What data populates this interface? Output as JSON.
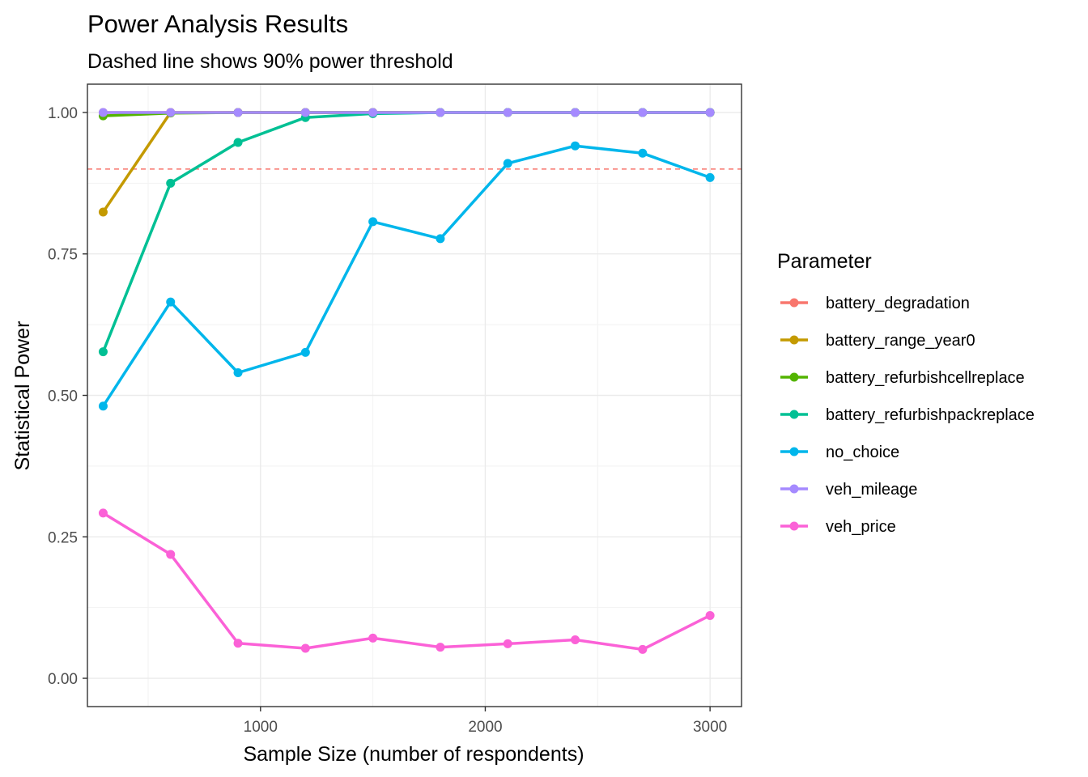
{
  "chart_data": {
    "type": "line",
    "title": "Power Analysis Results",
    "subtitle": "Dashed line shows 90% power threshold",
    "xlabel": "Sample Size (number of respondents)",
    "ylabel": "Statistical Power",
    "xlim": [
      230,
      3140
    ],
    "ylim": [
      -0.05,
      1.05
    ],
    "x_ticks": [
      1000,
      2000,
      3000
    ],
    "x_tick_labels": [
      "1000",
      "2000",
      "3000"
    ],
    "y_ticks": [
      0.0,
      0.25,
      0.5,
      0.75,
      1.0
    ],
    "y_tick_labels": [
      "0.00",
      "0.25",
      "0.50",
      "0.75",
      "1.00"
    ],
    "threshold": 0.9,
    "threshold_color": "#F8766D",
    "grid": true,
    "legend_title": "Parameter",
    "legend_position": "right",
    "x": [
      300,
      600,
      900,
      1200,
      1500,
      1800,
      2100,
      2400,
      2700,
      3000
    ],
    "series": [
      {
        "name": "battery_degradation",
        "color": "#F8766D",
        "values": [
          1.0,
          1.0,
          1.0,
          1.0,
          1.0,
          1.0,
          1.0,
          1.0,
          1.0,
          1.0
        ]
      },
      {
        "name": "battery_range_year0",
        "color": "#C49A00",
        "values": [
          0.824,
          1.0,
          1.0,
          1.0,
          1.0,
          1.0,
          1.0,
          1.0,
          1.0,
          1.0
        ]
      },
      {
        "name": "battery_refurbishcellreplace",
        "color": "#53B400",
        "values": [
          0.994,
          0.999,
          1.0,
          1.0,
          1.0,
          1.0,
          1.0,
          1.0,
          1.0,
          1.0
        ]
      },
      {
        "name": "battery_refurbishpackreplace",
        "color": "#00C094",
        "values": [
          0.577,
          0.875,
          0.947,
          0.991,
          0.998,
          1.0,
          1.0,
          1.0,
          1.0,
          1.0
        ]
      },
      {
        "name": "no_choice",
        "color": "#00B6EB",
        "values": [
          0.481,
          0.665,
          0.54,
          0.576,
          0.807,
          0.777,
          0.91,
          0.941,
          0.928,
          0.885
        ]
      },
      {
        "name": "veh_mileage",
        "color": "#A58AFF",
        "values": [
          1.0,
          1.0,
          1.0,
          1.0,
          1.0,
          1.0,
          1.0,
          1.0,
          1.0,
          1.0
        ]
      },
      {
        "name": "veh_price",
        "color": "#FB61D7",
        "values": [
          0.292,
          0.219,
          0.062,
          0.053,
          0.071,
          0.055,
          0.061,
          0.068,
          0.051,
          0.111
        ]
      }
    ]
  }
}
